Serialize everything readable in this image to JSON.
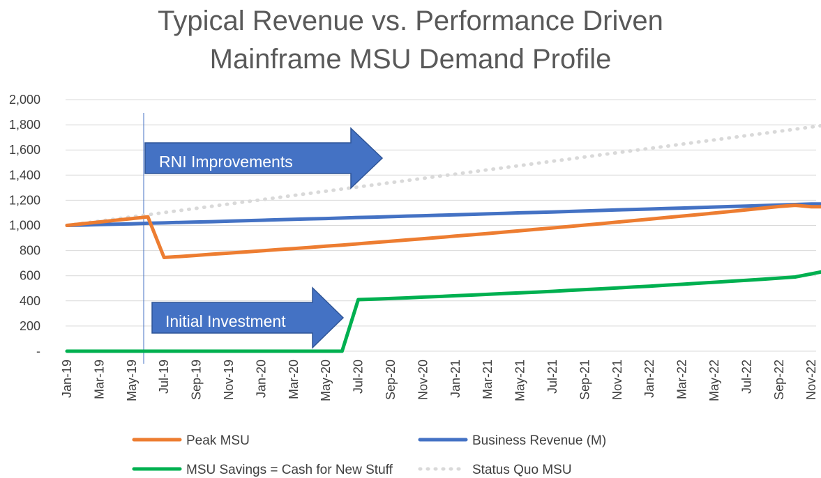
{
  "chart_data": {
    "type": "line",
    "title_line1": "Typical Revenue vs. Performance Driven",
    "title_line2": "Mainframe MSU Demand Profile",
    "ylim": [
      0,
      2000
    ],
    "y_ticks": [
      0,
      200,
      400,
      600,
      800,
      1000,
      1200,
      1400,
      1600,
      1800,
      2000
    ],
    "y_tick_labels": [
      "-",
      "200",
      "400",
      "600",
      "800",
      "1,000",
      "1,200",
      "1,400",
      "1,600",
      "1,800",
      "2,000"
    ],
    "months": [
      "Jan-19",
      "Feb-19",
      "Mar-19",
      "Apr-19",
      "May-19",
      "Jun-19",
      "Jul-19",
      "Aug-19",
      "Sep-19",
      "Oct-19",
      "Nov-19",
      "Dec-19",
      "Jan-20",
      "Feb-20",
      "Mar-20",
      "Apr-20",
      "May-20",
      "Jun-20",
      "Jul-20",
      "Aug-20",
      "Sep-20",
      "Oct-20",
      "Nov-20",
      "Dec-20",
      "Jan-21",
      "Feb-21",
      "Mar-21",
      "Apr-21",
      "May-21",
      "Jun-21",
      "Jul-21",
      "Aug-21",
      "Sep-21",
      "Oct-21",
      "Nov-21",
      "Dec-21",
      "Jan-22",
      "Feb-22",
      "Mar-22",
      "Apr-22",
      "May-22",
      "Jun-22",
      "Jul-22",
      "Aug-22",
      "Sep-22",
      "Oct-22",
      "Nov-22",
      "Dec-22"
    ],
    "x_tick_labels": [
      "Jan-19",
      "Mar-19",
      "May-19",
      "Jul-19",
      "Sep-19",
      "Nov-19",
      "Jan-20",
      "Mar-20",
      "May-20",
      "Jul-20",
      "Sep-20",
      "Nov-20",
      "Jan-21",
      "Mar-21",
      "May-21",
      "Jul-21",
      "Sep-21",
      "Nov-21",
      "Jan-22",
      "Mar-22",
      "May-22",
      "Jul-22",
      "Sep-22",
      "Nov-22"
    ],
    "grid": true,
    "vertical_marker_month": "Jun-19",
    "series": [
      {
        "name": "Peak MSU",
        "color": "#ED7D31",
        "style": "solid",
        "values": [
          1000,
          1014,
          1027,
          1041,
          1054,
          1068,
          745,
          753,
          762,
          771,
          780,
          789,
          798,
          807,
          816,
          825,
          835,
          844,
          854,
          864,
          874,
          884,
          894,
          904,
          915,
          925,
          936,
          947,
          958,
          969,
          980,
          991,
          1003,
          1014,
          1026,
          1038,
          1050,
          1062,
          1074,
          1086,
          1098,
          1111,
          1124,
          1137,
          1150,
          1160,
          1148,
          1148
        ]
      },
      {
        "name": "Business Revenue (M)",
        "color": "#4472C4",
        "style": "solid",
        "values": [
          1000,
          1003,
          1007,
          1010,
          1013,
          1017,
          1020,
          1024,
          1027,
          1030,
          1034,
          1037,
          1041,
          1045,
          1048,
          1052,
          1055,
          1059,
          1063,
          1066,
          1070,
          1074,
          1077,
          1081,
          1085,
          1088,
          1092,
          1096,
          1100,
          1103,
          1107,
          1111,
          1115,
          1119,
          1123,
          1127,
          1130,
          1134,
          1138,
          1142,
          1146,
          1150,
          1154,
          1158,
          1162,
          1166,
          1170,
          1170
        ]
      },
      {
        "name": "MSU Savings  = Cash for New Stuff",
        "color": "#00B050",
        "style": "solid",
        "values": [
          0,
          0,
          0,
          0,
          0,
          0,
          0,
          0,
          0,
          0,
          0,
          0,
          0,
          0,
          0,
          0,
          0,
          0,
          410,
          414,
          419,
          424,
          430,
          435,
          441,
          446,
          452,
          458,
          464,
          470,
          476,
          483,
          490,
          496,
          503,
          510,
          517,
          525,
          532,
          540,
          548,
          556,
          564,
          572,
          581,
          590,
          615,
          640
        ]
      },
      {
        "name": "Status Quo MSU",
        "color": "#D9D9D9",
        "style": "dotted",
        "values": [
          1000,
          1017,
          1034,
          1051,
          1068,
          1085,
          1102,
          1119,
          1136,
          1153,
          1170,
          1187,
          1204,
          1221,
          1238,
          1255,
          1272,
          1289,
          1306,
          1323,
          1340,
          1357,
          1374,
          1391,
          1408,
          1425,
          1442,
          1459,
          1476,
          1493,
          1510,
          1527,
          1544,
          1561,
          1578,
          1595,
          1612,
          1629,
          1646,
          1663,
          1680,
          1697,
          1714,
          1731,
          1748,
          1765,
          1782,
          1800
        ]
      }
    ],
    "annotations": [
      {
        "text": "RNI Improvements",
        "color": "#4472C4"
      },
      {
        "text": "Initial Investment",
        "color": "#4472C4"
      }
    ]
  }
}
